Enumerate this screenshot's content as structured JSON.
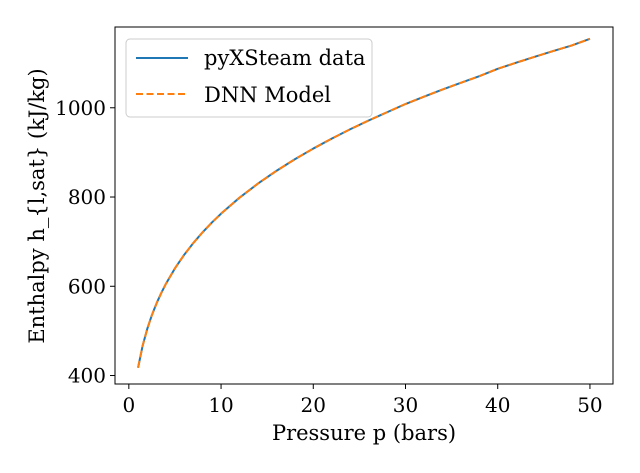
{
  "chart_data": {
    "type": "line",
    "xlabel": "Pressure p (bars)",
    "ylabel": "Enthalpy h_{l,sat} (kJ/kg)",
    "xlim": [
      -1.5,
      52.5
    ],
    "ylim": [
      381,
      1181
    ],
    "xticks": [
      0,
      10,
      20,
      30,
      40,
      50
    ],
    "yticks": [
      400,
      600,
      800,
      1000
    ],
    "x_tick_labels": [
      "0",
      "10",
      "20",
      "30",
      "40",
      "50"
    ],
    "y_tick_labels": [
      "400",
      "600",
      "800",
      "1000"
    ],
    "grid": false,
    "legend_position": "upper-left",
    "series": [
      {
        "name": "pyXSteam data",
        "color": "#1f77b4",
        "style": "solid",
        "x": [
          1,
          1.5,
          2,
          2.5,
          3,
          3.5,
          4,
          5,
          6,
          7,
          8,
          9,
          10,
          12,
          14,
          16,
          18,
          20,
          22,
          24,
          26,
          28,
          30,
          32,
          34,
          36,
          38,
          40,
          42,
          44,
          46,
          48,
          50
        ],
        "y": [
          417.4,
          467.1,
          504.7,
          535.4,
          561.5,
          584.3,
          604.7,
          640.2,
          670.5,
          697.1,
          721.0,
          742.7,
          762.7,
          798.5,
          830.1,
          858.6,
          884.6,
          908.6,
          930.9,
          951.8,
          971.4,
          990.0,
          1008.4,
          1024.9,
          1040.8,
          1056.0,
          1070.7,
          1087.4,
          1101.0,
          1114.1,
          1127.0,
          1139.5,
          1154.5
        ]
      },
      {
        "name": "DNN Model",
        "color": "#ff7f0e",
        "style": "dashed",
        "x": [
          1,
          1.5,
          2,
          2.5,
          3,
          3.5,
          4,
          5,
          6,
          7,
          8,
          9,
          10,
          12,
          14,
          16,
          18,
          20,
          22,
          24,
          26,
          28,
          30,
          32,
          34,
          36,
          38,
          40,
          42,
          44,
          46,
          48,
          50
        ],
        "y": [
          417.4,
          467.1,
          504.7,
          535.4,
          561.5,
          584.3,
          604.7,
          640.2,
          670.5,
          697.1,
          721.0,
          742.7,
          762.7,
          798.5,
          830.1,
          858.6,
          884.6,
          908.6,
          930.9,
          951.8,
          971.4,
          990.0,
          1008.4,
          1024.9,
          1040.8,
          1056.0,
          1070.7,
          1087.4,
          1101.0,
          1114.1,
          1127.0,
          1139.5,
          1154.5
        ]
      }
    ]
  }
}
